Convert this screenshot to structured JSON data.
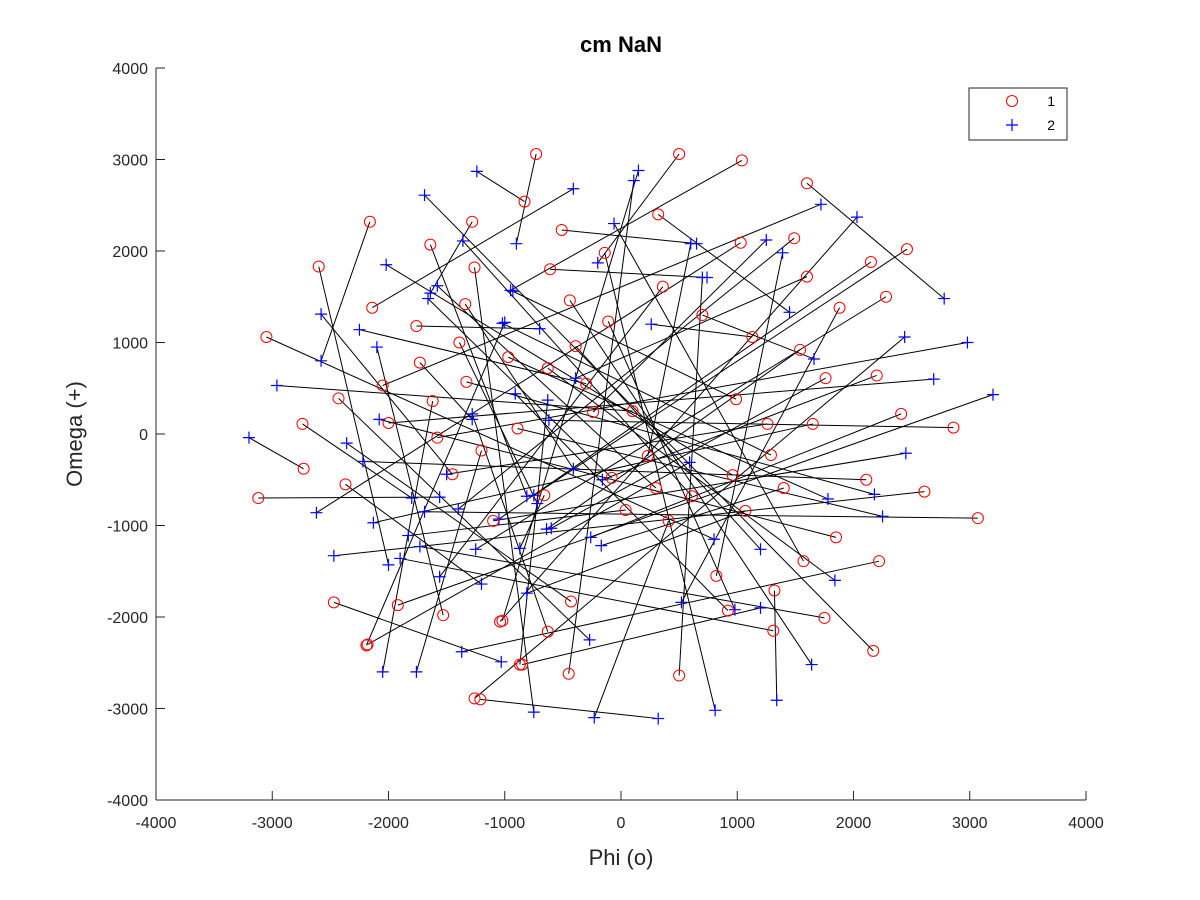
{
  "chart_data": {
    "type": "scatter",
    "title": "cm NaN",
    "xlabel": "Phi (o)",
    "ylabel": "Omega (+)",
    "xlim": [
      -4000,
      4000
    ],
    "ylim": [
      -4000,
      4000
    ],
    "xticks": [
      -4000,
      -3000,
      -2000,
      -1000,
      0,
      1000,
      2000,
      3000,
      4000
    ],
    "yticks": [
      -4000,
      -3000,
      -2000,
      -1000,
      0,
      1000,
      2000,
      3000,
      4000
    ],
    "grid": false,
    "legend_position": "top-right",
    "series": [
      {
        "name": "1",
        "marker": "circle",
        "color": "#ff0000"
      },
      {
        "name": "2",
        "marker": "plus",
        "color": "#0000ff"
      }
    ],
    "line_color": "#000000",
    "pairs": [
      {
        "o": [
          -730,
          3060
        ],
        "p": [
          -900,
          2080
        ]
      },
      {
        "o": [
          500,
          3060
        ],
        "p": [
          -200,
          1870
        ]
      },
      {
        "o": [
          1040,
          2990
        ],
        "p": [
          -950,
          1570
        ]
      },
      {
        "o": [
          1600,
          2740
        ],
        "p": [
          2780,
          1480
        ]
      },
      {
        "o": [
          -830,
          2540
        ],
        "p": [
          -1240,
          2870
        ]
      },
      {
        "o": [
          -2160,
          2320
        ],
        "p": [
          -2580,
          800
        ]
      },
      {
        "o": [
          -1280,
          2320
        ],
        "p": [
          -1640,
          1540
        ]
      },
      {
        "o": [
          320,
          2400
        ],
        "p": [
          1450,
          1330
        ]
      },
      {
        "o": [
          -510,
          2230
        ],
        "p": [
          650,
          2080
        ]
      },
      {
        "o": [
          -1640,
          2070
        ],
        "p": [
          -810,
          -680
        ]
      },
      {
        "o": [
          1030,
          2090
        ],
        "p": [
          -2620,
          -860
        ]
      },
      {
        "o": [
          1490,
          2140
        ],
        "p": [
          -1400,
          -820
        ]
      },
      {
        "o": [
          2460,
          2020
        ],
        "p": [
          -750,
          -670
        ]
      },
      {
        "o": [
          2150,
          1880
        ],
        "p": [
          -1050,
          -930
        ]
      },
      {
        "o": [
          -2600,
          1830
        ],
        "p": [
          -2000,
          -1430
        ]
      },
      {
        "o": [
          -1260,
          1820
        ],
        "p": [
          -750,
          -3040
        ]
      },
      {
        "o": [
          -610,
          1800
        ],
        "p": [
          740,
          1710
        ]
      },
      {
        "o": [
          1600,
          1720
        ],
        "p": [
          -390,
          610
        ]
      },
      {
        "o": [
          -140,
          1980
        ],
        "p": [
          810,
          -3020
        ]
      },
      {
        "o": [
          -2140,
          1380
        ],
        "p": [
          -410,
          2680
        ]
      },
      {
        "o": [
          -1340,
          1420
        ],
        "p": [
          -410,
          -380
        ]
      },
      {
        "o": [
          -440,
          1460
        ],
        "p": [
          1640,
          -2520
        ]
      },
      {
        "o": [
          360,
          1610
        ],
        "p": [
          -1560,
          -1560
        ]
      },
      {
        "o": [
          -1760,
          1180
        ],
        "p": [
          -700,
          1150
        ]
      },
      {
        "o": [
          -1390,
          1000
        ],
        "p": [
          -720,
          -760
        ]
      },
      {
        "o": [
          -1730,
          780
        ],
        "p": [
          -1280,
          160
        ]
      },
      {
        "o": [
          -2050,
          530
        ],
        "p": [
          1720,
          2510
        ]
      },
      {
        "o": [
          -1330,
          570
        ],
        "p": [
          2180,
          -660
        ]
      },
      {
        "o": [
          -2430,
          390
        ],
        "p": [
          -270,
          -2250
        ]
      },
      {
        "o": [
          -2000,
          120
        ],
        "p": [
          2690,
          600
        ]
      },
      {
        "o": [
          -2740,
          110
        ],
        "p": [
          -1800,
          -700
        ]
      },
      {
        "o": [
          -3050,
          1060
        ],
        "p": [
          800,
          -1150
        ]
      },
      {
        "o": [
          -1620,
          360
        ],
        "p": [
          -2050,
          -2600
        ]
      },
      {
        "o": [
          -1580,
          -40
        ],
        "p": [
          2980,
          1000
        ]
      },
      {
        "o": [
          -2730,
          -380
        ],
        "p": [
          -3200,
          -40
        ]
      },
      {
        "o": [
          -3120,
          -700
        ],
        "p": [
          -1560,
          -690
        ]
      },
      {
        "o": [
          -2370,
          -550
        ],
        "p": [
          -1200,
          -1640
        ]
      },
      {
        "o": [
          -2470,
          -1840
        ],
        "p": [
          -1030,
          -2490
        ]
      },
      {
        "o": [
          -2190,
          -2310
        ],
        "p": [
          -1000,
          1220
        ]
      },
      {
        "o": [
          -1920,
          -1870
        ],
        "p": [
          3200,
          430
        ]
      },
      {
        "o": [
          -1530,
          -1980
        ],
        "p": [
          -2100,
          950
        ]
      },
      {
        "o": [
          -1040,
          -2050
        ],
        "p": [
          2030,
          2370
        ]
      },
      {
        "o": [
          -1260,
          -2890
        ],
        "p": [
          2440,
          1060
        ]
      },
      {
        "o": [
          -870,
          -2520
        ],
        "p": [
          -630,
          370
        ]
      },
      {
        "o": [
          -450,
          -2620
        ],
        "p": [
          110,
          2770
        ]
      },
      {
        "o": [
          500,
          -2640
        ],
        "p": [
          700,
          1710
        ]
      },
      {
        "o": [
          -630,
          -2160
        ],
        "p": [
          -1280,
          220
        ]
      },
      {
        "o": [
          -430,
          -1830
        ],
        "p": [
          -2360,
          -100
        ]
      },
      {
        "o": [
          -1100,
          -950
        ],
        "p": [
          2450,
          -210
        ]
      },
      {
        "o": [
          -1450,
          -440
        ],
        "p": [
          -2580,
          1310
        ]
      },
      {
        "o": [
          -970,
          840
        ],
        "p": [
          1780,
          -710
        ]
      },
      {
        "o": [
          -1200,
          -180
        ],
        "p": [
          -1760,
          -2600
        ]
      },
      {
        "o": [
          -630,
          720
        ],
        "p": [
          1840,
          -1600
        ]
      },
      {
        "o": [
          -890,
          60
        ],
        "p": [
          2250,
          -900
        ]
      },
      {
        "o": [
          -390,
          960
        ],
        "p": [
          1200,
          -1260
        ]
      },
      {
        "o": [
          -110,
          1230
        ],
        "p": [
          980,
          -1920
        ]
      },
      {
        "o": [
          100,
          250
        ],
        "p": [
          -2960,
          530
        ]
      },
      {
        "o": [
          -240,
          240
        ],
        "p": [
          1250,
          2120
        ]
      },
      {
        "o": [
          700,
          1300
        ],
        "p": [
          1660,
          820
        ]
      },
      {
        "o": [
          1130,
          1060
        ],
        "p": [
          260,
          1200
        ]
      },
      {
        "o": [
          1540,
          920
        ],
        "p": [
          -640,
          -1040
        ]
      },
      {
        "o": [
          1880,
          1380
        ],
        "p": [
          520,
          -1840
        ]
      },
      {
        "o": [
          2280,
          1500
        ],
        "p": [
          -1250,
          -1260
        ]
      },
      {
        "o": [
          2410,
          220
        ],
        "p": [
          -260,
          -1130
        ]
      },
      {
        "o": [
          2860,
          70
        ],
        "p": [
          -620,
          150
        ]
      },
      {
        "o": [
          2200,
          640
        ],
        "p": [
          -160,
          -500
        ]
      },
      {
        "o": [
          1760,
          610
        ],
        "p": [
          -600,
          -1030
        ]
      },
      {
        "o": [
          1650,
          110
        ],
        "p": [
          -2130,
          -970
        ]
      },
      {
        "o": [
          1260,
          110
        ],
        "p": [
          -1500,
          -440
        ]
      },
      {
        "o": [
          990,
          380
        ],
        "p": [
          -930,
          1560
        ]
      },
      {
        "o": [
          1290,
          -230
        ],
        "p": [
          -1020,
          1210
        ]
      },
      {
        "o": [
          960,
          -450
        ],
        "p": [
          -2020,
          1850
        ]
      },
      {
        "o": [
          1400,
          -590
        ],
        "p": [
          -170,
          -1220
        ]
      },
      {
        "o": [
          1570,
          -1390
        ],
        "p": [
          -60,
          2300
        ]
      },
      {
        "o": [
          1850,
          -1130
        ],
        "p": [
          -2080,
          160
        ]
      },
      {
        "o": [
          2110,
          -500
        ],
        "p": [
          -2220,
          -300
        ]
      },
      {
        "o": [
          2610,
          -630
        ],
        "p": [
          -2470,
          -1330
        ]
      },
      {
        "o": [
          3070,
          -920
        ],
        "p": [
          -1690,
          -850
        ]
      },
      {
        "o": [
          2220,
          -1390
        ],
        "p": [
          -1370,
          -2380
        ]
      },
      {
        "o": [
          1750,
          -2010
        ],
        "p": [
          -1730,
          -1230
        ]
      },
      {
        "o": [
          2170,
          -2370
        ],
        "p": [
          -1690,
          2610
        ]
      },
      {
        "o": [
          1310,
          -2150
        ],
        "p": [
          -1900,
          -1360
        ]
      },
      {
        "o": [
          1320,
          -1710
        ],
        "p": [
          1340,
          -2910
        ]
      },
      {
        "o": [
          1070,
          -840
        ],
        "p": [
          -810,
          -1740
        ]
      },
      {
        "o": [
          820,
          -1550
        ],
        "p": [
          1390,
          1980
        ]
      },
      {
        "o": [
          920,
          -1930
        ],
        "p": [
          -910,
          440
        ]
      },
      {
        "o": [
          610,
          -680
        ],
        "p": [
          -1360,
          2110
        ]
      },
      {
        "o": [
          410,
          -950
        ],
        "p": [
          -230,
          -3100
        ]
      },
      {
        "o": [
          300,
          -590
        ],
        "p": [
          -1580,
          1620
        ]
      },
      {
        "o": [
          230,
          -240
        ],
        "p": [
          600,
          2080
        ]
      },
      {
        "o": [
          40,
          -830
        ],
        "p": [
          -1830,
          -1110
        ]
      },
      {
        "o": [
          -80,
          -480
        ],
        "p": [
          -1660,
          1480
        ]
      },
      {
        "o": [
          -300,
          550
        ],
        "p": [
          -2250,
          1140
        ]
      },
      {
        "o": [
          -660,
          -670
        ],
        "p": [
          -870,
          -1250
        ]
      },
      {
        "o": [
          -1020,
          -2040
        ],
        "p": [
          150,
          2880
        ]
      },
      {
        "o": [
          -2180,
          -2300
        ],
        "p": [
          590,
          -310
        ]
      },
      {
        "o": [
          -1210,
          -2900
        ],
        "p": [
          320,
          -3110
        ]
      },
      {
        "o": [
          -850,
          -2520
        ],
        "p": [
          1200,
          -1900
        ]
      }
    ]
  }
}
